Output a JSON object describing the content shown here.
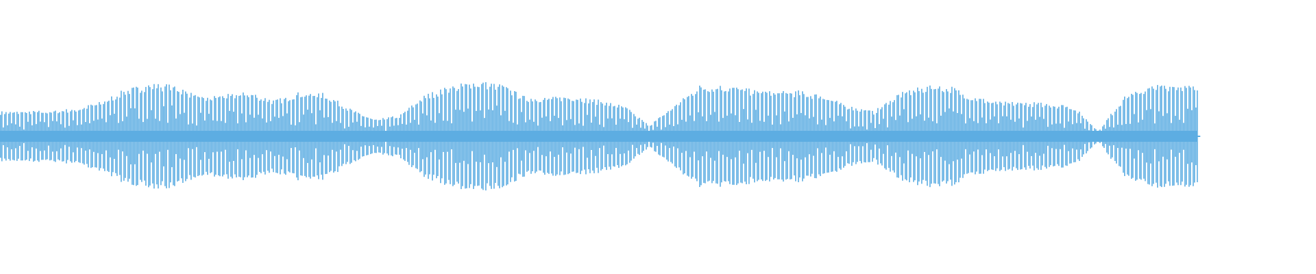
{
  "waveform": {
    "color": "#5dade2",
    "background": "#ffffff",
    "envelope": [
      0.45,
      0.45,
      0.47,
      0.5,
      0.62,
      0.85,
      0.95,
      0.93,
      0.7,
      0.75,
      0.8,
      0.65,
      0.8,
      0.78,
      0.5,
      0.3,
      0.38,
      0.75,
      0.9,
      1.0,
      0.95,
      0.72,
      0.7,
      0.73,
      0.65,
      0.55,
      0.2,
      0.55,
      0.92,
      0.92,
      0.85,
      0.8,
      0.82,
      0.74,
      0.55,
      0.45,
      0.78,
      0.9,
      0.92,
      0.72,
      0.62,
      0.62,
      0.6,
      0.55,
      0.1,
      0.7,
      0.9,
      0.95,
      0.9
    ],
    "duration_fraction": 0.91
  }
}
